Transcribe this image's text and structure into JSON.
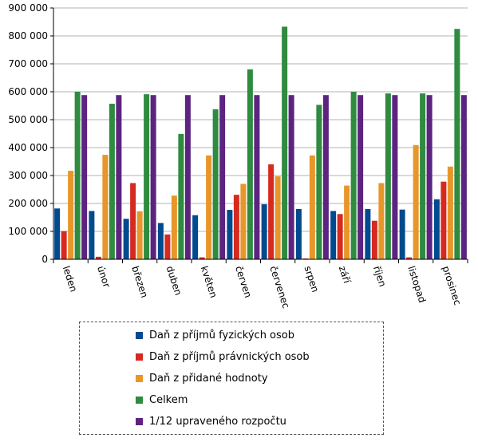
{
  "chart_data": {
    "type": "bar",
    "categories": [
      "leden",
      "únor",
      "březen",
      "duben",
      "květen",
      "červen",
      "červenec",
      "srpen",
      "září",
      "říjen",
      "listopad",
      "prosinec"
    ],
    "ylim": [
      0,
      900000
    ],
    "yticks": [
      "0",
      "100 000",
      "200 000",
      "300 000",
      "400 000",
      "500 000",
      "600 000",
      "700 000",
      "800 000",
      "900 000"
    ],
    "ytick_values": [
      0,
      100000,
      200000,
      300000,
      400000,
      500000,
      600000,
      700000,
      800000,
      900000
    ],
    "grid": true,
    "legend_position": "bottom",
    "series": [
      {
        "name": "Daň z příjmů fyzických osob",
        "color": "#004a8f",
        "values": [
          182000,
          173000,
          145000,
          130000,
          158000,
          177000,
          197000,
          180000,
          173000,
          180000,
          178000,
          215000
        ]
      },
      {
        "name": "Daň z příjmů právnických osob",
        "color": "#d62a20",
        "values": [
          101000,
          9000,
          273000,
          89000,
          7000,
          231000,
          340000,
          3000,
          162000,
          138000,
          7000,
          278000
        ]
      },
      {
        "name": "Daň z přidané hodnoty",
        "color": "#e8962a",
        "values": [
          317000,
          374000,
          172000,
          228000,
          372000,
          270000,
          297000,
          372000,
          264000,
          273000,
          409000,
          332000
        ]
      },
      {
        "name": "Celkem",
        "color": "#2e8b3f",
        "values": [
          600000,
          557000,
          591000,
          449000,
          537000,
          680000,
          833000,
          553000,
          600000,
          594000,
          594000,
          825000
        ]
      },
      {
        "name": "1/12 upraveného rozpočtu",
        "color": "#5c2380",
        "values": [
          588000,
          588000,
          588000,
          588000,
          588000,
          588000,
          588000,
          588000,
          588000,
          588000,
          588000,
          588000
        ]
      }
    ]
  }
}
